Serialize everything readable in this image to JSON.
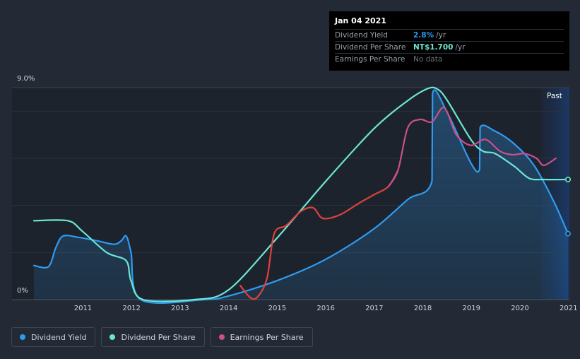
{
  "tooltip": {
    "date": "Jan 04 2021",
    "rows": [
      {
        "label": "Dividend Yield",
        "value": "2.8%",
        "unit": "/yr",
        "color": "#2f9bf0"
      },
      {
        "label": "Dividend Per Share",
        "value": "NT$1.700",
        "unit": "/yr",
        "color": "#6ce6d3"
      },
      {
        "label": "Earnings Per Share",
        "value": "No data"
      }
    ]
  },
  "legend": [
    {
      "label": "Dividend Yield",
      "color": "#2f9bf0"
    },
    {
      "label": "Dividend Per Share",
      "color": "#6ce6d3"
    },
    {
      "label": "Earnings Per Share",
      "color": "#c8508c"
    }
  ],
  "past_label": "Past",
  "chart_data": {
    "type": "line",
    "title": "",
    "ylabel": "",
    "xlabel": "",
    "y_tick_labels": [
      "9.0%",
      "0%"
    ],
    "ylim": [
      0,
      9.0
    ],
    "xlim": [
      2010.0,
      2021.0
    ],
    "x_tick_labels": [
      "2011",
      "2012",
      "2013",
      "2014",
      "2015",
      "2016",
      "2017",
      "2018",
      "2019",
      "2020",
      "2021"
    ],
    "x_ticks": [
      2011,
      2012,
      2013,
      2014,
      2015,
      2016,
      2017,
      2018,
      2019,
      2020,
      2021
    ],
    "past_region_start": 2020.45,
    "series": [
      {
        "name": "Dividend Yield",
        "unit": "%",
        "color": "#2f9bf0",
        "area": true,
        "points": [
          [
            2010.0,
            1.45
          ],
          [
            2010.3,
            1.4
          ],
          [
            2010.45,
            2.2
          ],
          [
            2010.6,
            2.7
          ],
          [
            2010.9,
            2.65
          ],
          [
            2011.3,
            2.5
          ],
          [
            2011.65,
            2.35
          ],
          [
            2011.8,
            2.5
          ],
          [
            2011.9,
            2.7
          ],
          [
            2012.0,
            2.0
          ],
          [
            2012.2,
            0.0
          ],
          [
            2013.5,
            0.0
          ],
          [
            2014.0,
            0.15
          ],
          [
            2015.0,
            0.8
          ],
          [
            2016.0,
            1.7
          ],
          [
            2017.0,
            3.0
          ],
          [
            2017.7,
            4.25
          ],
          [
            2018.2,
            5.05
          ],
          [
            2018.21,
            8.75
          ],
          [
            2018.5,
            8.0
          ],
          [
            2019.0,
            5.8
          ],
          [
            2019.18,
            5.55
          ],
          [
            2019.19,
            7.3
          ],
          [
            2019.5,
            7.15
          ],
          [
            2019.9,
            6.6
          ],
          [
            2020.3,
            5.7
          ],
          [
            2020.7,
            4.2
          ],
          [
            2021.0,
            2.8
          ]
        ]
      },
      {
        "name": "Dividend Per Share",
        "unit": "%",
        "color": "#6ce6d3",
        "area": false,
        "points": [
          [
            2010.0,
            3.35
          ],
          [
            2010.7,
            3.35
          ],
          [
            2011.0,
            2.9
          ],
          [
            2011.5,
            2.0
          ],
          [
            2011.9,
            1.65
          ],
          [
            2012.0,
            0.8
          ],
          [
            2012.25,
            0.0
          ],
          [
            2013.3,
            0.0
          ],
          [
            2014.0,
            0.4
          ],
          [
            2015.0,
            2.6
          ],
          [
            2016.0,
            5.0
          ],
          [
            2017.0,
            7.25
          ],
          [
            2017.7,
            8.45
          ],
          [
            2018.1,
            8.95
          ],
          [
            2018.3,
            8.95
          ],
          [
            2018.5,
            8.5
          ],
          [
            2019.0,
            6.8
          ],
          [
            2019.25,
            6.3
          ],
          [
            2019.5,
            6.2
          ],
          [
            2019.9,
            5.65
          ],
          [
            2020.2,
            5.15
          ],
          [
            2020.5,
            5.1
          ],
          [
            2021.0,
            5.1
          ]
        ]
      },
      {
        "name": "Earnings Per Share",
        "unit": "%",
        "color_segments": [
          {
            "until": 2017.4,
            "color": "#e0413c"
          },
          {
            "until": 2021.0,
            "color": "#c8508c"
          }
        ],
        "area": false,
        "points": [
          [
            2014.25,
            0.6
          ],
          [
            2014.45,
            0.1
          ],
          [
            2014.6,
            0.1
          ],
          [
            2014.8,
            0.9
          ],
          [
            2014.95,
            2.8
          ],
          [
            2015.2,
            3.15
          ],
          [
            2015.5,
            3.75
          ],
          [
            2015.75,
            3.9
          ],
          [
            2015.95,
            3.45
          ],
          [
            2016.3,
            3.6
          ],
          [
            2016.7,
            4.1
          ],
          [
            2017.0,
            4.45
          ],
          [
            2017.3,
            4.8
          ],
          [
            2017.5,
            5.5
          ],
          [
            2017.7,
            7.3
          ],
          [
            2017.95,
            7.65
          ],
          [
            2018.2,
            7.55
          ],
          [
            2018.45,
            8.15
          ],
          [
            2018.7,
            7.0
          ],
          [
            2019.0,
            6.55
          ],
          [
            2019.3,
            6.8
          ],
          [
            2019.6,
            6.3
          ],
          [
            2019.85,
            6.15
          ],
          [
            2020.1,
            6.2
          ],
          [
            2020.35,
            6.0
          ],
          [
            2020.5,
            5.7
          ],
          [
            2020.75,
            6.0
          ]
        ]
      }
    ]
  }
}
